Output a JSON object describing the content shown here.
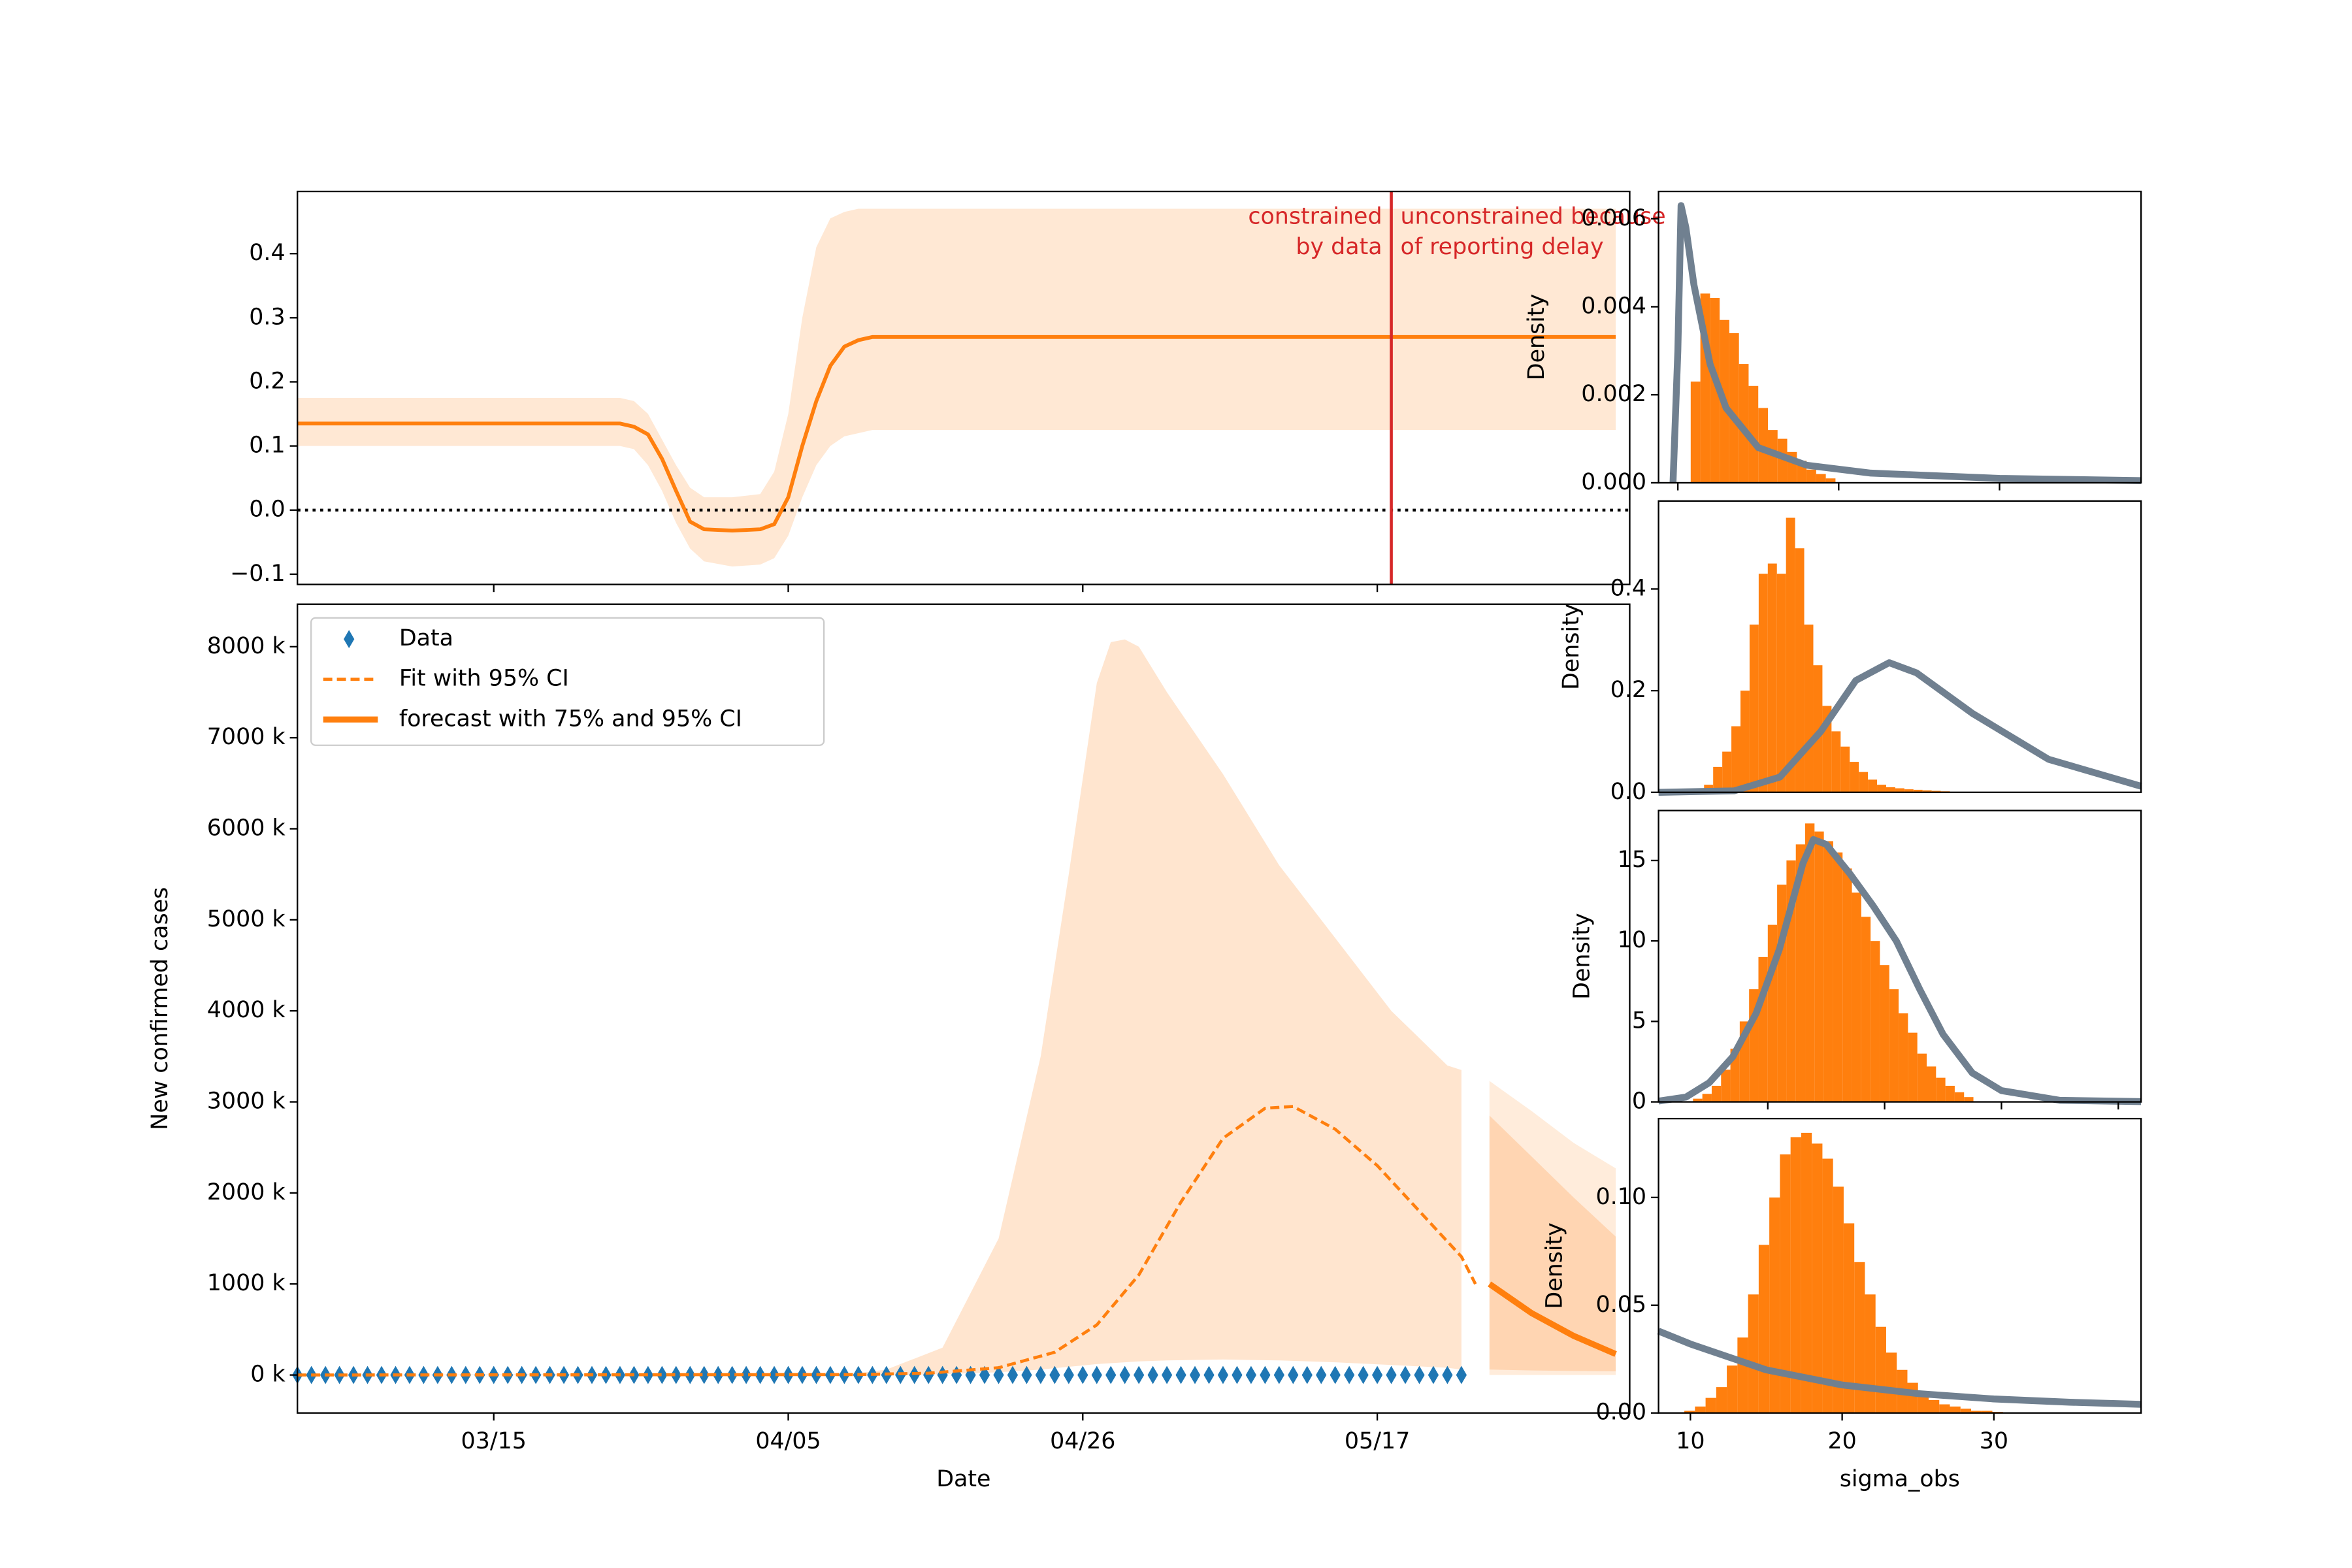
{
  "chart_data": [
    {
      "type": "line",
      "xlim": [
        "03/01",
        "06/04"
      ],
      "xticks": [
        "03/15",
        "04/05",
        "04/26",
        "05/17"
      ],
      "ylim": [
        -0.116,
        0.497
      ],
      "yticks": [
        {
          "value": -0.1,
          "label": "−0.1"
        },
        {
          "value": 0,
          "label": "0.0"
        },
        0.1,
        0.2,
        0.3,
        0.4
      ],
      "hline": 0,
      "vline": {
        "x": "05/18",
        "color": "#d62728",
        "left_text": [
          "constrained",
          "by data"
        ],
        "right_text": [
          "unconstrained because",
          "of reporting delay"
        ]
      },
      "series": [
        {
          "color": "#ff7f0e",
          "x": [
            "03/01",
            "03/24",
            "03/25",
            "03/26",
            "03/27",
            "03/28",
            "03/29",
            "03/30",
            "04/01",
            "04/03",
            "04/04",
            "04/05",
            "04/06",
            "04/07",
            "04/08",
            "04/09",
            "04/10",
            "04/11",
            "06/03"
          ],
          "values": [
            0.135,
            0.135,
            0.13,
            0.118,
            0.08,
            0.03,
            -0.018,
            -0.03,
            -0.032,
            -0.03,
            -0.022,
            0.02,
            0.1,
            0.17,
            0.225,
            0.255,
            0.265,
            0.27,
            0.27
          ],
          "band": {
            "opacity": 0.18,
            "upper": [
              0.175,
              0.175,
              0.17,
              0.15,
              0.11,
              0.07,
              0.035,
              0.02,
              0.02,
              0.025,
              0.06,
              0.15,
              0.3,
              0.41,
              0.455,
              0.465,
              0.47,
              0.47,
              0.47
            ],
            "lower": [
              0.1,
              0.1,
              0.095,
              0.07,
              0.03,
              -0.02,
              -0.06,
              -0.08,
              -0.088,
              -0.085,
              -0.075,
              -0.04,
              0.02,
              0.07,
              0.1,
              0.115,
              0.12,
              0.125,
              0.125
            ]
          }
        }
      ]
    },
    {
      "type": "line",
      "xlabel": "Date",
      "ylabel": "New confirmed cases",
      "xlim": [
        "03/01",
        "06/04"
      ],
      "xticks": [
        "03/15",
        "04/05",
        "04/26",
        "05/17"
      ],
      "ylim": [
        -417000,
        8467000
      ],
      "yticks": [
        {
          "value": 0,
          "label": "0 k"
        },
        {
          "value": 1000000,
          "label": "1000 k"
        },
        {
          "value": 2000000,
          "label": "2000 k"
        },
        {
          "value": 3000000,
          "label": "3000 k"
        },
        {
          "value": 4000000,
          "label": "4000 k"
        },
        {
          "value": 5000000,
          "label": "5000 k"
        },
        {
          "value": 6000000,
          "label": "6000 k"
        },
        {
          "value": 7000000,
          "label": "7000 k"
        },
        {
          "value": 8000000,
          "label": "8000 k"
        }
      ],
      "legend": "upper left",
      "series": [
        {
          "name": "Data",
          "kind": "scatter",
          "marker": "diamond",
          "color": "#1f77b4",
          "x": [
            "03/01",
            "03/02",
            "03/03",
            "03/04",
            "03/05",
            "03/06",
            "03/07",
            "03/08",
            "03/09",
            "03/10",
            "03/11",
            "03/12",
            "03/13",
            "03/14",
            "03/15",
            "03/16",
            "03/17",
            "03/18",
            "03/19",
            "03/20",
            "03/21",
            "03/22",
            "03/23",
            "03/24",
            "03/25",
            "03/26",
            "03/27",
            "03/28",
            "03/29",
            "03/30",
            "03/31",
            "04/01",
            "04/02",
            "04/03",
            "04/04",
            "04/05",
            "04/06",
            "04/07",
            "04/08",
            "04/09",
            "04/10",
            "04/11",
            "04/12",
            "04/13",
            "04/14",
            "04/15",
            "04/16",
            "04/17",
            "04/18",
            "04/19",
            "04/20",
            "04/21",
            "04/22",
            "04/23",
            "04/24",
            "04/25",
            "04/26",
            "04/27",
            "04/28",
            "04/29",
            "04/30",
            "05/01",
            "05/02",
            "05/03",
            "05/04",
            "05/05",
            "05/06",
            "05/07",
            "05/08",
            "05/09",
            "05/10",
            "05/11",
            "05/12",
            "05/13",
            "05/14",
            "05/15",
            "05/16",
            "05/17",
            "05/18",
            "05/19",
            "05/20",
            "05/21",
            "05/22",
            "05/23"
          ],
          "values": [
            0,
            0,
            0,
            0,
            0,
            0,
            0,
            0,
            0,
            0,
            0,
            0,
            0,
            0,
            0,
            0,
            0,
            0,
            0,
            0,
            0,
            0,
            0,
            0,
            0,
            0,
            0,
            0,
            0,
            0,
            0,
            0,
            0,
            0,
            0,
            0,
            0,
            0,
            0,
            0,
            0,
            0,
            0,
            0,
            0,
            0,
            0,
            0,
            0,
            0,
            0,
            0,
            0,
            0,
            0,
            0,
            0,
            0,
            0,
            0,
            0,
            0,
            0,
            0,
            0,
            0,
            0,
            0,
            0,
            0,
            0,
            0,
            0,
            0,
            0,
            0,
            0,
            0,
            0,
            0,
            0,
            0,
            0,
            0
          ]
        },
        {
          "name": "Fit with 95% CI",
          "kind": "line",
          "dash": true,
          "color": "#ff7f0e",
          "x": [
            "03/01",
            "04/10",
            "04/15",
            "04/20",
            "04/24",
            "04/27",
            "04/30",
            "05/03",
            "05/06",
            "05/09",
            "05/11",
            "05/14",
            "05/17",
            "05/20",
            "05/23",
            "05/24"
          ],
          "values": [
            0,
            5000,
            20000,
            80000,
            250000,
            550000,
            1100000,
            1900000,
            2600000,
            2930000,
            2950000,
            2700000,
            2300000,
            1800000,
            1300000,
            1000000
          ],
          "bands": [
            {
              "opacity": 0.2,
              "x": [
                "03/01",
                "04/10",
                "04/12",
                "04/16",
                "04/20",
                "04/23",
                "04/25",
                "04/27",
                "04/28",
                "04/29",
                "04/30",
                "05/02",
                "05/06",
                "05/10",
                "05/14",
                "05/18",
                "05/22",
                "05/23"
              ],
              "upper": [
                0,
                20000,
                60000,
                300000,
                1500000,
                3500000,
                5500000,
                7600000,
                8050000,
                8080000,
                8000000,
                7500000,
                6600000,
                5600000,
                4800000,
                4000000,
                3400000,
                3350000
              ],
              "lower": [
                0,
                0,
                0,
                10000,
                30000,
                60000,
                90000,
                120000,
                130000,
                140000,
                150000,
                160000,
                170000,
                160000,
                140000,
                110000,
                80000,
                60000
              ]
            }
          ]
        },
        {
          "name": "forecast with 75% and 95% CI",
          "kind": "line",
          "color": "#ff7f0e",
          "x": [
            "05/25",
            "05/28",
            "05/31",
            "06/03"
          ],
          "values": [
            1000000,
            680000,
            430000,
            230000
          ],
          "bands": [
            {
              "opacity": 0.15,
              "x": [
                "05/25",
                "05/28",
                "05/31",
                "06/03"
              ],
              "upper": [
                3230000,
                2900000,
                2550000,
                2270000
              ],
              "lower": [
                0,
                0,
                0,
                0
              ]
            },
            {
              "opacity": 0.2,
              "x": [
                "05/25",
                "05/28",
                "05/31",
                "06/03"
              ],
              "upper": [
                2850000,
                2400000,
                1950000,
                1520000
              ],
              "lower": [
                60000,
                50000,
                45000,
                40000
              ]
            }
          ]
        }
      ]
    },
    {
      "type": "histogram",
      "ylabel": "Density",
      "color": "#ff7f0e",
      "xlim": [
        -0.12,
        2.88
      ],
      "xticks": [
        0,
        1,
        2
      ],
      "ylim": [
        0,
        0.00662
      ],
      "yticks": [
        {
          "value": 0,
          "label": "0.000"
        },
        {
          "value": 0.002,
          "label": "0.002"
        },
        {
          "value": 0.004,
          "label": "0.004"
        },
        {
          "value": 0.006,
          "label": "0.006"
        }
      ],
      "bins": [
        0.08,
        0.14,
        0.2,
        0.26,
        0.32,
        0.38,
        0.44,
        0.5,
        0.56,
        0.62,
        0.68,
        0.74,
        0.8,
        0.86,
        0.92,
        0.98
      ],
      "values": [
        0.0023,
        0.0043,
        0.0042,
        0.0037,
        0.0034,
        0.0027,
        0.0022,
        0.0017,
        0.0012,
        0.001,
        0.0007,
        0.0005,
        0.0003,
        0.0002,
        0.0001
      ],
      "curve": {
        "color": "#708090",
        "x": [
          -0.03,
          0,
          0.02,
          0.05,
          0.1,
          0.2,
          0.3,
          0.5,
          0.8,
          1.2,
          2,
          2.88
        ],
        "values": [
          0,
          0.003,
          0.0063,
          0.0058,
          0.0045,
          0.0027,
          0.0017,
          0.0008,
          0.0004,
          0.00022,
          0.0001,
          5e-05
        ]
      }
    },
    {
      "type": "histogram",
      "ylabel": "Density",
      "color": "#ff7f0e",
      "xlim": [
        0,
        31.8
      ],
      "ylim": [
        0,
        0.573
      ],
      "yticks": [
        {
          "value": 0,
          "label": "0.0"
        },
        0.2,
        0.4
      ],
      "bins": [
        2.4,
        3,
        3.6,
        4.2,
        4.8,
        5.4,
        6,
        6.6,
        7.2,
        7.8,
        8.4,
        9,
        9.6,
        10.2,
        10.8,
        11.4,
        12,
        12.6,
        13.2,
        13.8,
        14.4,
        15,
        15.6,
        16.2,
        16.8,
        17.4,
        18,
        18.6,
        19.2,
        19.8
      ],
      "values": [
        0.005,
        0.015,
        0.05,
        0.08,
        0.13,
        0.2,
        0.33,
        0.43,
        0.45,
        0.43,
        0.54,
        0.48,
        0.33,
        0.25,
        0.17,
        0.12,
        0.09,
        0.06,
        0.04,
        0.025,
        0.015,
        0.01,
        0.008,
        0.006,
        0.005,
        0.004,
        0.003,
        0.002,
        0.001
      ],
      "curve": {
        "color": "#708090",
        "x": [
          0,
          5,
          8,
          10.7,
          13,
          15.2,
          17,
          20.7,
          25.7,
          31.8
        ],
        "values": [
          0,
          0.003,
          0.03,
          0.12,
          0.22,
          0.255,
          0.235,
          0.155,
          0.065,
          0.012
        ]
      }
    },
    {
      "type": "histogram",
      "ylabel": "Density",
      "color": "#ff7f0e",
      "xlim": [
        0.65,
        41.95
      ],
      "xticks": [
        10,
        20,
        30,
        40
      ],
      "ylim": [
        0,
        18.1
      ],
      "yticks": [
        0,
        5,
        10,
        15
      ],
      "bins": [
        3.6,
        4.4,
        5.2,
        6,
        6.8,
        7.6,
        8.4,
        9.2,
        10,
        10.8,
        11.6,
        12.4,
        13.2,
        14,
        14.8,
        15.6,
        16.4,
        17.2,
        18,
        18.8,
        19.6,
        20.4,
        21.2,
        22,
        22.8,
        23.6,
        24.4,
        25.2,
        26,
        26.8,
        27.6
      ],
      "values": [
        0.2,
        0.5,
        1,
        2,
        3.3,
        5,
        7,
        9,
        11,
        13.5,
        15,
        16,
        17.3,
        16.8,
        16.2,
        15.5,
        14.5,
        13,
        11.5,
        10,
        8.5,
        7,
        5.5,
        4.3,
        3,
        2.2,
        1.5,
        1,
        0.6,
        0.3
      ],
      "curve": {
        "color": "#708090",
        "x": [
          0.65,
          3,
          5,
          7,
          9,
          11,
          13,
          13.9,
          15,
          17,
          19,
          21,
          23,
          25,
          27.5,
          30,
          35,
          41.95
        ],
        "values": [
          0.05,
          0.3,
          1.2,
          2.8,
          5.5,
          9.5,
          14.8,
          16.3,
          16,
          14.2,
          12.2,
          10,
          7,
          4.2,
          1.8,
          0.7,
          0.1,
          0.02
        ]
      }
    },
    {
      "type": "histogram",
      "ylabel": "Density",
      "xlabel": "sigma_obs",
      "xticklabels": true,
      "color": "#ff7f0e",
      "xlim": [
        7.9,
        39.7
      ],
      "xticks": [
        10,
        20,
        30
      ],
      "ylim": [
        0,
        0.1366
      ],
      "yticks": [
        {
          "value": 0,
          "label": "0.00"
        },
        {
          "value": 0.05,
          "label": "0.05"
        },
        {
          "value": 0.1,
          "label": "0.10"
        }
      ],
      "bins": [
        9.6,
        10.3,
        11,
        11.7,
        12.4,
        13.1,
        13.8,
        14.5,
        15.2,
        15.9,
        16.6,
        17.3,
        18,
        18.7,
        19.4,
        20.1,
        20.8,
        21.5,
        22.2,
        22.9,
        23.6,
        24.3,
        25,
        25.7,
        26.4,
        27.1,
        27.8,
        28.5,
        29.2,
        29.9,
        30.6
      ],
      "values": [
        0.001,
        0.003,
        0.007,
        0.012,
        0.022,
        0.035,
        0.055,
        0.078,
        0.1,
        0.12,
        0.128,
        0.13,
        0.125,
        0.118,
        0.105,
        0.088,
        0.07,
        0.055,
        0.04,
        0.028,
        0.02,
        0.014,
        0.009,
        0.006,
        0.004,
        0.003,
        0.002,
        0.001,
        0.001,
        0.0005
      ],
      "curve": {
        "color": "#708090",
        "x": [
          7.9,
          10,
          15,
          20,
          25,
          30,
          35,
          39.7
        ],
        "values": [
          0.038,
          0.032,
          0.02,
          0.013,
          0.009,
          0.0065,
          0.005,
          0.004
        ]
      }
    }
  ]
}
